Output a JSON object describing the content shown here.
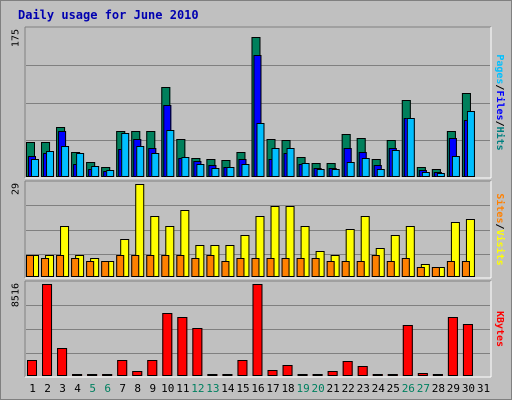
{
  "title": "Daily usage for June 2010",
  "chart_data": [
    {
      "type": "bar",
      "panel": "pages-files-hits",
      "categories": [
        "1",
        "2",
        "3",
        "4",
        "5",
        "6",
        "7",
        "8",
        "9",
        "10",
        "11",
        "12",
        "13",
        "14",
        "15",
        "16",
        "17",
        "18",
        "19",
        "20",
        "21",
        "22",
        "23",
        "24",
        "25",
        "26",
        "27",
        "28",
        "29",
        "30",
        "31"
      ],
      "ymax_label": "175",
      "ylim": [
        0,
        175
      ],
      "ylabel_parts": [
        {
          "text": "Pages",
          "color": "#00c0ff"
        },
        {
          "text": "/",
          "color": "#000000"
        },
        {
          "text": "Files",
          "color": "#0000ff"
        },
        {
          "text": "/",
          "color": "#000000"
        },
        {
          "text": "Hits",
          "color": "#008080"
        }
      ],
      "series": [
        {
          "name": "Hits",
          "color": "#00805c",
          "values": [
            42,
            42,
            60,
            30,
            18,
            12,
            55,
            55,
            55,
            107,
            45,
            23,
            21,
            20,
            30,
            167,
            45,
            44,
            24,
            17,
            17,
            51,
            46,
            22,
            44,
            92,
            12,
            9,
            55,
            100,
            0
          ]
        },
        {
          "name": "Files",
          "color": "#0000ff",
          "values": [
            25,
            28,
            55,
            16,
            10,
            7,
            33,
            45,
            34,
            86,
            23,
            19,
            14,
            12,
            22,
            145,
            22,
            29,
            16,
            11,
            11,
            35,
            30,
            14,
            35,
            70,
            8,
            6,
            47,
            68,
            0
          ]
        },
        {
          "name": "Pages",
          "color": "#00bfff",
          "values": [
            22,
            31,
            37,
            28,
            13,
            8,
            52,
            37,
            28,
            56,
            24,
            16,
            11,
            12,
            16,
            64,
            35,
            34,
            17,
            9,
            9,
            18,
            23,
            9,
            32,
            70,
            6,
            5,
            25,
            79,
            0
          ]
        }
      ]
    },
    {
      "type": "bar",
      "panel": "visits-sites",
      "categories": [
        "1",
        "2",
        "3",
        "4",
        "5",
        "6",
        "7",
        "8",
        "9",
        "10",
        "11",
        "12",
        "13",
        "14",
        "15",
        "16",
        "17",
        "18",
        "19",
        "20",
        "21",
        "22",
        "23",
        "24",
        "25",
        "26",
        "27",
        "28",
        "29",
        "30",
        "31"
      ],
      "ymax_label": "29",
      "ylim": [
        0,
        29
      ],
      "ylabel_parts": [
        {
          "text": "Sites",
          "color": "#ff8000"
        },
        {
          "text": "/",
          "color": "#000000"
        },
        {
          "text": "Visits",
          "color": "#ffff00"
        }
      ],
      "series": [
        {
          "name": "Visits",
          "color": "#ffff00",
          "values": [
            7,
            7,
            16,
            7,
            6,
            5,
            12,
            29,
            19,
            16,
            21,
            10,
            10,
            10,
            13,
            19,
            22,
            22,
            16,
            8,
            7,
            15,
            19,
            9,
            13,
            16,
            4,
            3,
            17,
            18,
            0
          ]
        },
        {
          "name": "Sites",
          "color": "#ff8000",
          "values": [
            7,
            6,
            7,
            6,
            5,
            5,
            7,
            7,
            7,
            7,
            7,
            6,
            7,
            5,
            6,
            6,
            6,
            6,
            6,
            6,
            5,
            5,
            5,
            7,
            5,
            6,
            3,
            3,
            5,
            5,
            0
          ]
        }
      ]
    },
    {
      "type": "bar",
      "panel": "kbytes",
      "categories": [
        "1",
        "2",
        "3",
        "4",
        "5",
        "6",
        "7",
        "8",
        "9",
        "10",
        "11",
        "12",
        "13",
        "14",
        "15",
        "16",
        "17",
        "18",
        "19",
        "20",
        "21",
        "22",
        "23",
        "24",
        "25",
        "26",
        "27",
        "28",
        "29",
        "30",
        "31"
      ],
      "ymax_label": "8516",
      "ylim": [
        0,
        8516
      ],
      "ylabel_parts": [
        {
          "text": "KBytes",
          "color": "#ff0000"
        }
      ],
      "series": [
        {
          "name": "KBytes",
          "color": "#ff0000",
          "values": [
            1500,
            8516,
            2600,
            60,
            60,
            70,
            1450,
            500,
            1500,
            5800,
            5500,
            4400,
            100,
            60,
            1500,
            8516,
            600,
            1050,
            70,
            60,
            500,
            1400,
            900,
            60,
            150,
            4700,
            250,
            60,
            5500,
            4800,
            0
          ]
        }
      ]
    }
  ],
  "x_labels": [
    {
      "text": "1",
      "color": "#000000"
    },
    {
      "text": "2",
      "color": "#000000"
    },
    {
      "text": "3",
      "color": "#000000"
    },
    {
      "text": "4",
      "color": "#000000"
    },
    {
      "text": "5",
      "color": "#008060"
    },
    {
      "text": "6",
      "color": "#008060"
    },
    {
      "text": "7",
      "color": "#000000"
    },
    {
      "text": "8",
      "color": "#000000"
    },
    {
      "text": "9",
      "color": "#000000"
    },
    {
      "text": "10",
      "color": "#000000"
    },
    {
      "text": "11",
      "color": "#000000"
    },
    {
      "text": "12",
      "color": "#008060"
    },
    {
      "text": "13",
      "color": "#008060"
    },
    {
      "text": "14",
      "color": "#000000"
    },
    {
      "text": "15",
      "color": "#000000"
    },
    {
      "text": "16",
      "color": "#000000"
    },
    {
      "text": "17",
      "color": "#000000"
    },
    {
      "text": "18",
      "color": "#000000"
    },
    {
      "text": "19",
      "color": "#008060"
    },
    {
      "text": "20",
      "color": "#008060"
    },
    {
      "text": "21",
      "color": "#000000"
    },
    {
      "text": "22",
      "color": "#000000"
    },
    {
      "text": "23",
      "color": "#000000"
    },
    {
      "text": "24",
      "color": "#000000"
    },
    {
      "text": "25",
      "color": "#000000"
    },
    {
      "text": "26",
      "color": "#008060"
    },
    {
      "text": "27",
      "color": "#008060"
    },
    {
      "text": "28",
      "color": "#000000"
    },
    {
      "text": "29",
      "color": "#000000"
    },
    {
      "text": "30",
      "color": "#000000"
    },
    {
      "text": "31",
      "color": "#000000"
    }
  ],
  "colors": {
    "background": "#c0c0c0",
    "gridline": "#808080",
    "title": "#0000b0"
  }
}
